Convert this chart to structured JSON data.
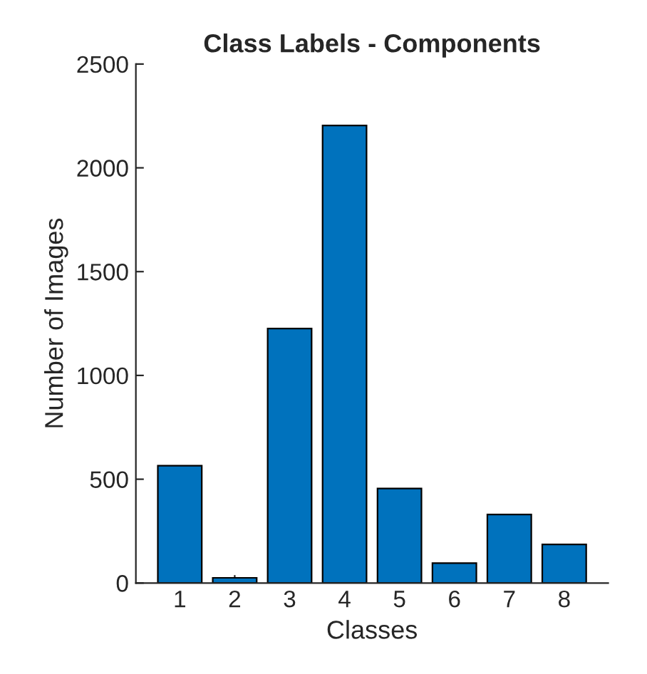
{
  "chart_data": {
    "type": "bar",
    "title": "Class Labels - Components",
    "xlabel": "Classes",
    "ylabel": "Number of Images",
    "categories": [
      "1",
      "2",
      "3",
      "4",
      "5",
      "6",
      "7",
      "8"
    ],
    "values": [
      565,
      25,
      1226,
      2204,
      455,
      96,
      330,
      186
    ],
    "color": "#0072bd",
    "ylim": [
      0,
      2500
    ],
    "yticks": [
      0,
      500,
      1000,
      1500,
      2000,
      2500
    ],
    "grid": false,
    "legend": false
  }
}
